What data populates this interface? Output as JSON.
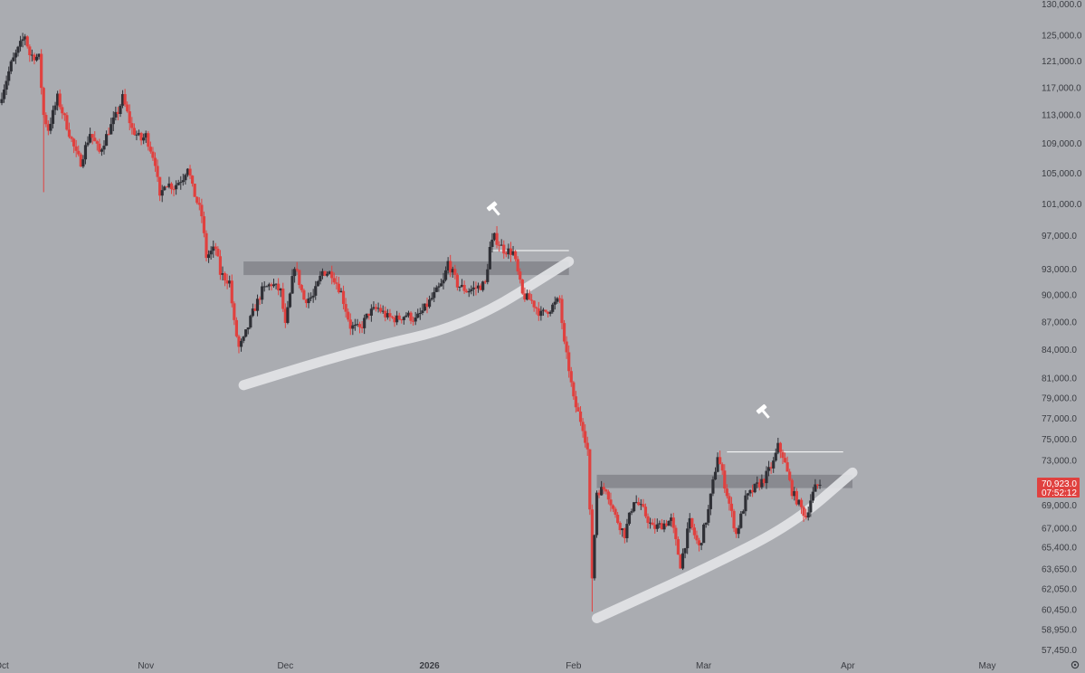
{
  "chart_data": {
    "type": "candlestick",
    "title": "",
    "xlabel": "",
    "ylabel": "",
    "y_scale": "log",
    "ylim": [
      56500,
      130500
    ],
    "y_ticks": [
      {
        "value": 130000,
        "label": "130,000.0"
      },
      {
        "value": 125000,
        "label": "125,000.0"
      },
      {
        "value": 121000,
        "label": "121,000.0"
      },
      {
        "value": 117000,
        "label": "117,000.0"
      },
      {
        "value": 113000,
        "label": "113,000.0"
      },
      {
        "value": 109000,
        "label": "109,000.0"
      },
      {
        "value": 105000,
        "label": "105,000.0"
      },
      {
        "value": 101000,
        "label": "101,000.0"
      },
      {
        "value": 97000,
        "label": "97,000.0"
      },
      {
        "value": 93000,
        "label": "93,000.0"
      },
      {
        "value": 90000,
        "label": "90,000.0"
      },
      {
        "value": 87000,
        "label": "87,000.0"
      },
      {
        "value": 84000,
        "label": "84,000.0"
      },
      {
        "value": 81000,
        "label": "81,000.0"
      },
      {
        "value": 79000,
        "label": "79,000.0"
      },
      {
        "value": 77000,
        "label": "77,000.0"
      },
      {
        "value": 75000,
        "label": "75,000.0"
      },
      {
        "value": 73000,
        "label": "73,000.0"
      },
      {
        "value": 69000,
        "label": "69,000.0"
      },
      {
        "value": 67000,
        "label": "67,000.0"
      },
      {
        "value": 65400,
        "label": "65,400.0"
      },
      {
        "value": 63650,
        "label": "63,650.0"
      },
      {
        "value": 62050,
        "label": "62,050.0"
      },
      {
        "value": 60450,
        "label": "60,450.0"
      },
      {
        "value": 58950,
        "label": "58,950.0"
      },
      {
        "value": 57450,
        "label": "57,450.0"
      }
    ],
    "x_range": [
      "2025-10-01",
      "2026-05-31"
    ],
    "x_ticks": [
      {
        "date": "2025-10-01",
        "label": "Oct",
        "bold": false
      },
      {
        "date": "2025-11-01",
        "label": "Nov",
        "bold": false
      },
      {
        "date": "2025-12-01",
        "label": "Dec",
        "bold": false
      },
      {
        "date": "2026-01-01",
        "label": "2026",
        "bold": true
      },
      {
        "date": "2026-02-01",
        "label": "Feb",
        "bold": false
      },
      {
        "date": "2026-03-01",
        "label": "Mar",
        "bold": false
      },
      {
        "date": "2026-04-01",
        "label": "Apr",
        "bold": false
      },
      {
        "date": "2026-05-01",
        "label": "May",
        "bold": false
      }
    ],
    "last_price": {
      "value": 70923,
      "label": "70,923.0",
      "countdown": "07:52:12"
    },
    "close_path": [
      [
        "2025-10-01",
        116000
      ],
      [
        "2025-10-03",
        120500
      ],
      [
        "2025-10-05",
        123500
      ],
      [
        "2025-10-06",
        125000
      ],
      [
        "2025-10-07",
        122000
      ],
      [
        "2025-10-09",
        121500
      ],
      [
        "2025-10-10",
        113000
      ],
      [
        "2025-10-11",
        111000
      ],
      [
        "2025-10-13",
        115500
      ],
      [
        "2025-10-15",
        111500
      ],
      [
        "2025-10-17",
        107500
      ],
      [
        "2025-10-18",
        106500
      ],
      [
        "2025-10-20",
        110500
      ],
      [
        "2025-10-22",
        107800
      ],
      [
        "2025-10-24",
        110800
      ],
      [
        "2025-10-26",
        113500
      ],
      [
        "2025-10-27",
        115500
      ],
      [
        "2025-10-29",
        111000
      ],
      [
        "2025-10-31",
        109500
      ],
      [
        "2025-11-01",
        110100
      ],
      [
        "2025-11-03",
        106500
      ],
      [
        "2025-11-04",
        101500
      ],
      [
        "2025-11-05",
        103800
      ],
      [
        "2025-11-07",
        103200
      ],
      [
        "2025-11-09",
        104500
      ],
      [
        "2025-11-10",
        106000
      ],
      [
        "2025-11-11",
        103000
      ],
      [
        "2025-11-13",
        99500
      ],
      [
        "2025-11-14",
        94500
      ],
      [
        "2025-11-16",
        95500
      ],
      [
        "2025-11-17",
        92500
      ],
      [
        "2025-11-19",
        91500
      ],
      [
        "2025-11-20",
        86800
      ],
      [
        "2025-11-21",
        84200
      ],
      [
        "2025-11-22",
        85000
      ],
      [
        "2025-11-24",
        88000
      ],
      [
        "2025-11-26",
        90500
      ],
      [
        "2025-11-28",
        91300
      ],
      [
        "2025-11-30",
        90400
      ],
      [
        "2025-12-01",
        86500
      ],
      [
        "2025-12-03",
        93500
      ],
      [
        "2025-12-05",
        89500
      ],
      [
        "2025-12-07",
        89800
      ],
      [
        "2025-12-09",
        92700
      ],
      [
        "2025-12-11",
        92500
      ],
      [
        "2025-12-13",
        90300
      ],
      [
        "2025-12-15",
        86500
      ],
      [
        "2025-12-17",
        86200
      ],
      [
        "2025-12-19",
        88000
      ],
      [
        "2025-12-21",
        88500
      ],
      [
        "2025-12-23",
        87500
      ],
      [
        "2025-12-25",
        87300
      ],
      [
        "2025-12-27",
        87800
      ],
      [
        "2025-12-29",
        87200
      ],
      [
        "2025-12-31",
        88500
      ],
      [
        "2026-01-02",
        90000
      ],
      [
        "2026-01-04",
        91500
      ],
      [
        "2026-01-05",
        93800
      ],
      [
        "2026-01-07",
        91200
      ],
      [
        "2026-01-09",
        90500
      ],
      [
        "2026-01-11",
        90800
      ],
      [
        "2026-01-13",
        91300
      ],
      [
        "2026-01-14",
        95500
      ],
      [
        "2026-01-15",
        96800
      ],
      [
        "2026-01-17",
        95300
      ],
      [
        "2026-01-19",
        95000
      ],
      [
        "2026-01-20",
        92500
      ],
      [
        "2026-01-21",
        90000
      ],
      [
        "2026-01-23",
        89300
      ],
      [
        "2026-01-25",
        87800
      ],
      [
        "2026-01-27",
        88500
      ],
      [
        "2026-01-29",
        89500
      ],
      [
        "2026-01-30",
        84500
      ],
      [
        "2026-01-31",
        82000
      ],
      [
        "2026-02-01",
        78800
      ],
      [
        "2026-02-03",
        76200
      ],
      [
        "2026-02-04",
        74000
      ],
      [
        "2026-02-05",
        63000
      ],
      [
        "2026-02-06",
        70200
      ],
      [
        "2026-02-08",
        70500
      ],
      [
        "2026-02-10",
        68000
      ],
      [
        "2026-02-12",
        66500
      ],
      [
        "2026-02-14",
        69500
      ],
      [
        "2026-02-16",
        68500
      ],
      [
        "2026-02-18",
        67000
      ],
      [
        "2026-02-20",
        67300
      ],
      [
        "2026-02-22",
        67700
      ],
      [
        "2026-02-24",
        64000
      ],
      [
        "2026-02-26",
        67500
      ],
      [
        "2026-02-28",
        65400
      ],
      [
        "2026-03-02",
        68500
      ],
      [
        "2026-03-04",
        73500
      ],
      [
        "2026-03-06",
        70000
      ],
      [
        "2026-03-08",
        66500
      ],
      [
        "2026-03-10",
        69500
      ],
      [
        "2026-03-12",
        70500
      ],
      [
        "2026-03-14",
        71300
      ],
      [
        "2026-03-16",
        72800
      ],
      [
        "2026-03-17",
        74300
      ],
      [
        "2026-03-18",
        73500
      ],
      [
        "2026-03-20",
        70200
      ],
      [
        "2026-03-22",
        68700
      ],
      [
        "2026-03-23",
        68000
      ],
      [
        "2026-03-24",
        69500
      ],
      [
        "2026-03-25",
        70500
      ],
      [
        "2026-03-26",
        70923
      ]
    ],
    "annotations": {
      "zones": [
        {
          "from": "2025-11-22",
          "to": "2026-01-31",
          "low": 92300,
          "high": 93900
        },
        {
          "from": "2026-02-06",
          "to": "2026-04-02",
          "low": 70500,
          "high": 71700
        }
      ],
      "level_lines": [
        {
          "from": "2026-01-14",
          "to": "2026-01-31",
          "value": 95200
        },
        {
          "from": "2026-03-06",
          "to": "2026-03-31",
          "value": 73800
        }
      ],
      "trendlines": [
        {
          "points": [
            [
              "2025-11-22",
              80300
            ],
            [
              "2025-12-17",
              84000
            ],
            [
              "2026-01-09",
              86600
            ],
            [
              "2026-01-31",
              93900
            ]
          ]
        },
        {
          "points": [
            [
              "2026-02-06",
              59800
            ],
            [
              "2026-03-01",
              63600
            ],
            [
              "2026-03-20",
              67300
            ],
            [
              "2026-04-02",
              71900
            ]
          ]
        }
      ],
      "hammer_markers": [
        {
          "date": "2026-01-15",
          "value": 100300
        },
        {
          "date": "2026-03-14",
          "value": 77600
        }
      ]
    },
    "colors": {
      "background": "#aaacb1",
      "up": "#2f3036",
      "down": "#e0413f",
      "zone": "#7d7f85",
      "trendline": "#e3e4e8",
      "level_line": "#ffffff",
      "price_tag": "#e0413f",
      "axis_text": "#3a3c42"
    },
    "grid": false,
    "legend": "none"
  }
}
